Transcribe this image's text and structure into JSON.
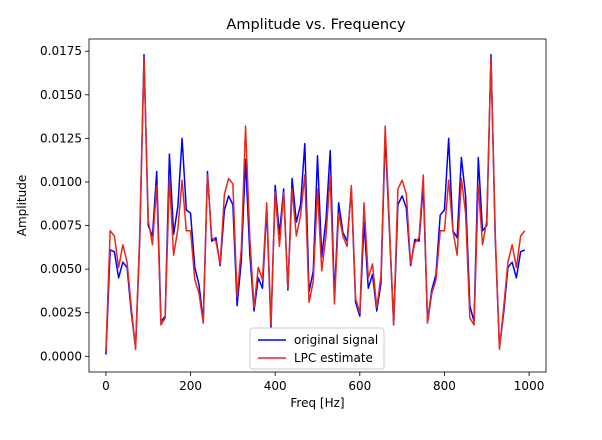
{
  "chart_data": {
    "type": "line",
    "title": "Amplitude vs. Frequency",
    "xlabel": "Freq [Hz]",
    "ylabel": "Amplitude",
    "xlim": [
      -40,
      1040
    ],
    "ylim": [
      -0.0009,
      0.0182
    ],
    "x_ticks": [
      0,
      200,
      400,
      600,
      800,
      1000
    ],
    "x_tick_labels": [
      "0",
      "200",
      "400",
      "600",
      "800",
      "1000"
    ],
    "y_ticks": [
      0.0,
      0.0025,
      0.005,
      0.0075,
      0.01,
      0.0125,
      0.015,
      0.0175
    ],
    "y_tick_labels": [
      "0.0000",
      "0.0025",
      "0.0050",
      "0.0075",
      "0.0100",
      "0.0125",
      "0.0150",
      "0.0175"
    ],
    "grid": false,
    "legend_position": "bottom-center",
    "x": [
      0,
      10,
      20,
      30,
      40,
      50,
      60,
      70,
      80,
      90,
      100,
      110,
      120,
      130,
      140,
      150,
      160,
      170,
      180,
      190,
      200,
      210,
      220,
      230,
      240,
      250,
      260,
      270,
      280,
      290,
      300,
      310,
      320,
      330,
      340,
      350,
      360,
      370,
      380,
      390,
      400,
      410,
      420,
      430,
      440,
      450,
      460,
      470,
      480,
      490,
      500,
      510,
      520,
      530,
      540,
      550,
      560,
      570,
      580,
      590,
      600,
      610,
      620,
      630,
      640,
      650,
      660,
      670,
      680,
      690,
      700,
      710,
      720,
      730,
      740,
      750,
      760,
      770,
      780,
      790,
      800,
      810,
      820,
      830,
      840,
      850,
      860,
      870,
      880,
      890,
      900,
      910,
      920,
      930,
      940,
      950,
      960,
      970,
      980,
      990
    ],
    "series": [
      {
        "name": "original signal",
        "color": "#0000ff",
        "values": [
          0.0001,
          0.0061,
          0.006,
          0.0045,
          0.0054,
          0.0051,
          0.0025,
          0.0005,
          0.0067,
          0.0173,
          0.0075,
          0.0069,
          0.0106,
          0.002,
          0.0023,
          0.0116,
          0.007,
          0.0086,
          0.0125,
          0.0084,
          0.0082,
          0.0051,
          0.0041,
          0.002,
          0.0106,
          0.0066,
          0.0068,
          0.0052,
          0.0084,
          0.0092,
          0.0087,
          0.0029,
          0.0055,
          0.0113,
          0.0059,
          0.0026,
          0.0045,
          0.0039,
          0.0085,
          0.0016,
          0.0098,
          0.007,
          0.0096,
          0.0038,
          0.0102,
          0.0077,
          0.0087,
          0.0122,
          0.0037,
          0.0049,
          0.0115,
          0.0057,
          0.0078,
          0.0118,
          0.0034,
          0.0088,
          0.0071,
          0.0066,
          0.0096,
          0.0031,
          0.0023,
          0.0077,
          0.0039,
          0.0047,
          0.0026,
          0.0042,
          0.0127,
          0.0072,
          0.0018,
          0.0087,
          0.0092,
          0.0085,
          0.0052,
          0.0067,
          0.0066,
          0.0098,
          0.002,
          0.0038,
          0.0047,
          0.0081,
          0.0084,
          0.0125,
          0.0072,
          0.0068,
          0.0114,
          0.0092,
          0.0029,
          0.002,
          0.0114,
          0.0072,
          0.0075,
          0.0173,
          0.0068,
          0.0005,
          0.0025,
          0.0051,
          0.0054,
          0.0045,
          0.006,
          0.0061
        ]
      },
      {
        "name": "LPC estimate",
        "color": "#e8281a",
        "values": [
          0.0003,
          0.0072,
          0.0069,
          0.0051,
          0.0064,
          0.0054,
          0.0028,
          0.0004,
          0.0071,
          0.0171,
          0.0078,
          0.0064,
          0.0098,
          0.0018,
          0.0022,
          0.0102,
          0.0058,
          0.0073,
          0.0101,
          0.0072,
          0.0072,
          0.0044,
          0.0036,
          0.0019,
          0.0104,
          0.0068,
          0.0066,
          0.0053,
          0.0093,
          0.0102,
          0.0099,
          0.0034,
          0.0062,
          0.0132,
          0.0068,
          0.0028,
          0.0051,
          0.0044,
          0.0088,
          0.0018,
          0.0094,
          0.0063,
          0.0094,
          0.0039,
          0.0096,
          0.0069,
          0.0081,
          0.0104,
          0.0031,
          0.0043,
          0.0096,
          0.0049,
          0.0069,
          0.0104,
          0.003,
          0.0082,
          0.0069,
          0.0063,
          0.0098,
          0.0033,
          0.0025,
          0.0088,
          0.0045,
          0.0053,
          0.0028,
          0.0046,
          0.0132,
          0.0075,
          0.0018,
          0.0096,
          0.0101,
          0.0093,
          0.0053,
          0.0065,
          0.0068,
          0.0104,
          0.0019,
          0.0036,
          0.0044,
          0.0072,
          0.0072,
          0.0101,
          0.0072,
          0.0058,
          0.0102,
          0.0082,
          0.0022,
          0.0018,
          0.0098,
          0.0064,
          0.0078,
          0.0171,
          0.0071,
          0.0004,
          0.0028,
          0.0054,
          0.0064,
          0.0051,
          0.0069,
          0.0072
        ]
      }
    ]
  }
}
